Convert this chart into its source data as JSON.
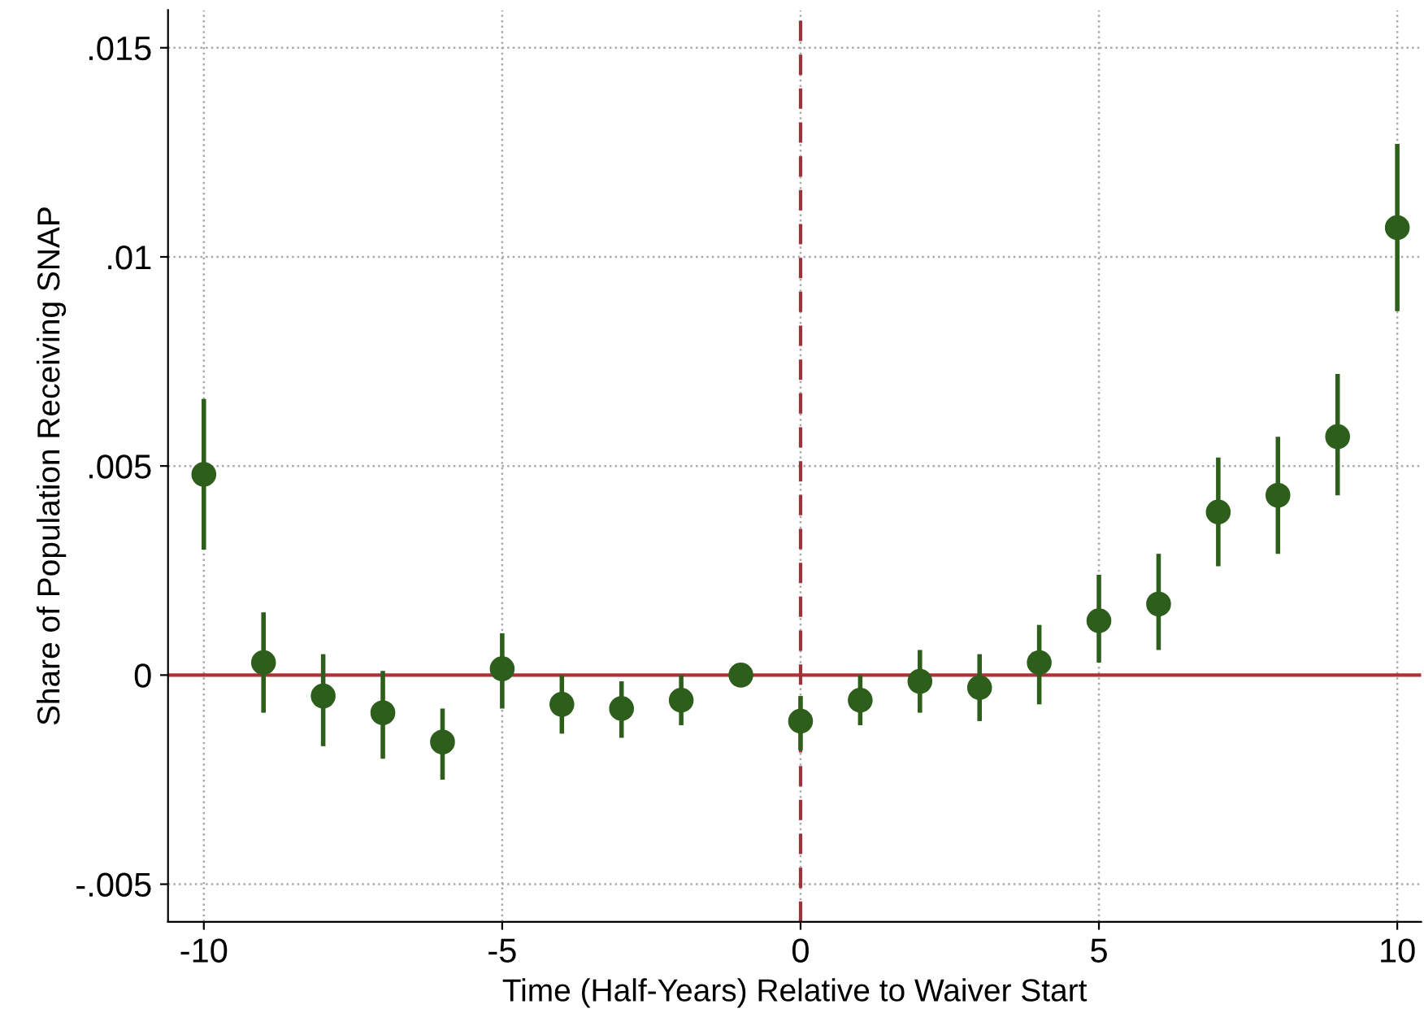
{
  "chart_data": {
    "type": "scatter",
    "xlabel": "Time (Half-Years) Relative to Waiver Start",
    "ylabel": "Share of Population Receiving SNAP",
    "x": [
      -10,
      -9,
      -8,
      -7,
      -6,
      -5,
      -4,
      -3,
      -2,
      -1,
      0,
      1,
      2,
      3,
      4,
      5,
      6,
      7,
      8,
      9,
      10
    ],
    "series": [
      {
        "color": "#2d5e1b",
        "values": [
          0.0048,
          0.0003,
          -0.0005,
          -0.0009,
          -0.0016,
          0.00015,
          -0.0007,
          -0.0008,
          -0.0006,
          0,
          -0.0011,
          -0.0006,
          -0.00015,
          -0.0003,
          0.0003,
          0.0013,
          0.0017,
          0.0039,
          0.0043,
          0.0057,
          0.0107
        ],
        "errors": [
          [
            0.003,
            0.0066
          ],
          [
            -0.0009,
            0.0015
          ],
          [
            -0.0017,
            0.0005
          ],
          [
            -0.002,
            0.0001
          ],
          [
            -0.0025,
            -0.0008
          ],
          [
            -0.0008,
            0.001
          ],
          [
            -0.0014,
            0
          ],
          [
            -0.0015,
            -0.00015
          ],
          [
            -0.0012,
            0
          ],
          null,
          [
            -0.0018,
            -0.0005
          ],
          [
            -0.0012,
            0
          ],
          [
            -0.0009,
            0.0006
          ],
          [
            -0.0011,
            0.0005
          ],
          [
            -0.0007,
            0.0012
          ],
          [
            0.0003,
            0.0024
          ],
          [
            0.0006,
            0.0029
          ],
          [
            0.0026,
            0.0052
          ],
          [
            0.0029,
            0.0057
          ],
          [
            0.0043,
            0.0072
          ],
          [
            0.0087,
            0.0127
          ]
        ]
      }
    ],
    "marker": "circle",
    "grid": true,
    "xlim": [
      -10.6,
      10.4
    ],
    "xticks": [
      -10,
      -5,
      0,
      5,
      10
    ],
    "ylim": [
      -0.0059,
      0.0159
    ],
    "yticks": [
      {
        "value": -0.005,
        "label": "-.005"
      },
      {
        "value": 0,
        "label": "0"
      },
      {
        "value": 0.005,
        "label": ".005"
      },
      {
        "value": 0.01,
        "label": ".01"
      },
      {
        "value": 0.015,
        "label": ".015"
      }
    ],
    "ref_lines": [
      {
        "axis": "y",
        "value": 0,
        "color": "#b0303a",
        "line_style": "solid"
      },
      {
        "axis": "x",
        "value": 0,
        "color": "#a0303a",
        "line_style": "dashed"
      }
    ]
  }
}
